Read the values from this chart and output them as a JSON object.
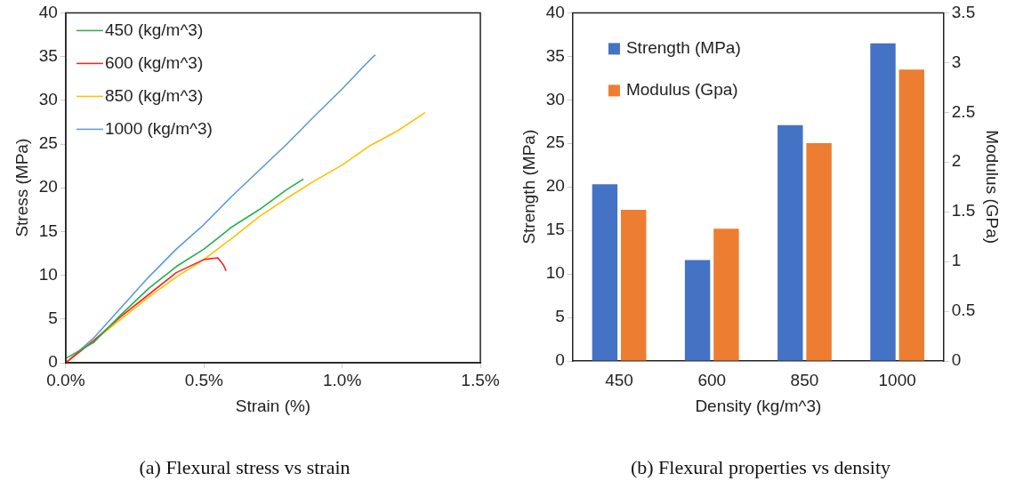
{
  "chart_data": [
    {
      "type": "line",
      "title": "(a) Flexural stress vs strain",
      "xlabel": "Strain (%)",
      "ylabel": "Stress (MPa)",
      "xlim": [
        0,
        1.5
      ],
      "xticks": [
        {
          "value": 0,
          "label": "0.0%"
        },
        {
          "value": 0.5,
          "label": "0.5%"
        },
        {
          "value": 1.0,
          "label": "1.0%"
        },
        {
          "value": 1.5,
          "label": "1.5%"
        }
      ],
      "ylim": [
        0,
        40
      ],
      "yticks": [
        0,
        5,
        10,
        15,
        20,
        25,
        30,
        35,
        40
      ],
      "grid": false,
      "legend": "top left",
      "marker": "none",
      "line_style": "solid",
      "series": [
        {
          "name": "450 (kg/m^3)",
          "color": "#22b14c",
          "x": [
            0,
            0.1,
            0.2,
            0.3,
            0.4,
            0.5,
            0.6,
            0.7,
            0.8,
            0.86
          ],
          "values": [
            0.5,
            2.3,
            5.5,
            8.5,
            11,
            13,
            15.5,
            17.5,
            19.8,
            21
          ]
        },
        {
          "name": "600 (kg/m^3)",
          "color": "#ff2020",
          "x": [
            0,
            0.1,
            0.2,
            0.3,
            0.4,
            0.5,
            0.55,
            0.57,
            0.58
          ],
          "values": [
            0,
            2.5,
            5.3,
            7.8,
            10.3,
            11.8,
            12,
            11.2,
            10.5
          ]
        },
        {
          "name": "850 (kg/m^3)",
          "color": "#ffc000",
          "x": [
            0,
            0.1,
            0.2,
            0.3,
            0.4,
            0.5,
            0.6,
            0.7,
            0.8,
            0.9,
            1.0,
            1.1,
            1.2,
            1.3
          ],
          "values": [
            0,
            2.5,
            5,
            7.5,
            9.8,
            11.8,
            14.2,
            16.7,
            18.8,
            20.8,
            22.6,
            24.8,
            26.5,
            28.6
          ]
        },
        {
          "name": "1000 (kg/m^3)",
          "color": "#5b9bd5",
          "x": [
            0,
            0.1,
            0.2,
            0.3,
            0.4,
            0.5,
            0.6,
            0.7,
            0.8,
            0.9,
            1.0,
            1.1,
            1.12
          ],
          "values": [
            0,
            2.8,
            6.3,
            9.8,
            13,
            15.8,
            19,
            22,
            25,
            28.2,
            31.3,
            34.6,
            35.2
          ]
        }
      ]
    },
    {
      "type": "bar",
      "title": "(b) Flexural properties vs density",
      "xlabel": "Density (kg/m^3)",
      "ylabel": "Strength (MPa)",
      "y2label": "Modulus (GPa)",
      "categories": [
        "450",
        "600",
        "850",
        "1000"
      ],
      "ylim": [
        0,
        40
      ],
      "yticks": [
        0,
        5,
        10,
        15,
        20,
        25,
        30,
        35,
        40
      ],
      "y2lim": [
        0,
        3.5
      ],
      "y2ticks": [
        0,
        0.5,
        1,
        1.5,
        2,
        2.5,
        3,
        3.5
      ],
      "grid": false,
      "legend": "top left",
      "series": [
        {
          "name": "Strength (MPa)",
          "color": "#4472c4",
          "values": [
            20.3,
            11.6,
            27.1,
            36.5
          ]
        },
        {
          "name": "Modulus (Gpa)",
          "color": "#ed7d31",
          "axis": "y2",
          "values": [
            1.52,
            1.33,
            2.19,
            2.93
          ]
        }
      ]
    }
  ]
}
